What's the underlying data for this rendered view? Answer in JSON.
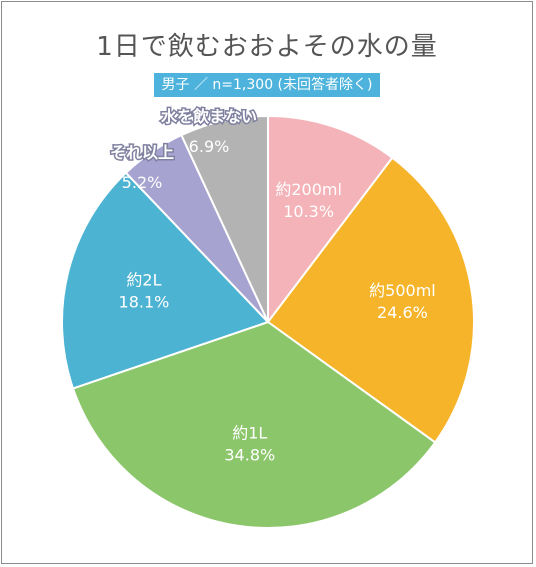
{
  "chart_data": {
    "type": "pie",
    "title": "1日で飲むおおよその水の量",
    "subtitle": "男子 ／ n=1,300 (未回答者除く)",
    "slices": [
      {
        "label": "約200ml",
        "pct_text": "10.3%",
        "value": 10.3,
        "color": "#f4b3b8"
      },
      {
        "label": "約500ml",
        "pct_text": "24.6%",
        "value": 24.6,
        "color": "#f6b42a"
      },
      {
        "label": "約1L",
        "pct_text": "34.8%",
        "value": 34.8,
        "color": "#8cc66b"
      },
      {
        "label": "約2L",
        "pct_text": "18.1%",
        "value": 18.1,
        "color": "#4db3d2"
      },
      {
        "label": "それ以上",
        "pct_text": "5.2%",
        "value": 5.2,
        "color": "#a7a3d1"
      },
      {
        "label": "水を飲まない",
        "pct_text": "6.9%",
        "value": 6.9,
        "color": "#b3b3b3"
      }
    ]
  }
}
